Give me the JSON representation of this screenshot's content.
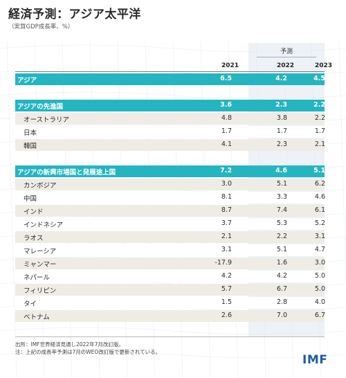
{
  "title": "経済予測：アジア太平洋",
  "subtitle": "（実質GDP成長率、%）",
  "forecast_label": "予測",
  "years": [
    "2021",
    "2022",
    "2023"
  ],
  "rows": [
    {
      "name": "アジア",
      "values": [
        "6.5",
        "4.2",
        "4.5"
      ],
      "kind": "group"
    },
    {
      "name": "アジアの先進国",
      "values": [
        "3.6",
        "2.3",
        "2.2"
      ],
      "kind": "group"
    },
    {
      "name": "オーストラリア",
      "values": [
        "4.8",
        "3.8",
        "2.2"
      ],
      "kind": "country"
    },
    {
      "name": "日本",
      "values": [
        "1.7",
        "1.7",
        "1.7"
      ],
      "kind": "country"
    },
    {
      "name": "韓国",
      "values": [
        "4.1",
        "2.3",
        "2.1"
      ],
      "kind": "country"
    },
    {
      "name": "アジアの新興市場国と発展途上国",
      "values": [
        "7.2",
        "4.6",
        "5.1"
      ],
      "kind": "group"
    },
    {
      "name": "カンボジア",
      "values": [
        "3.0",
        "5.1",
        "6.2"
      ],
      "kind": "country"
    },
    {
      "name": "中国",
      "values": [
        "8.1",
        "3.3",
        "4.6"
      ],
      "kind": "country"
    },
    {
      "name": "インド",
      "values": [
        "8.7",
        "7.4",
        "6.1"
      ],
      "kind": "country"
    },
    {
      "name": "インドネシア",
      "values": [
        "3.7",
        "5.3",
        "5.2"
      ],
      "kind": "country"
    },
    {
      "name": "ラオス",
      "values": [
        "2.1",
        "2.2",
        "3.1"
      ],
      "kind": "country"
    },
    {
      "name": "マレーシア",
      "values": [
        "3.1",
        "5.1",
        "4.7"
      ],
      "kind": "country"
    },
    {
      "name": "ミャンマー",
      "values": [
        "-17.9",
        "1.6",
        "3.0"
      ],
      "kind": "country"
    },
    {
      "name": "ネパール",
      "values": [
        "4.2",
        "4.2",
        "5.0"
      ],
      "kind": "country"
    },
    {
      "name": "フィリピン",
      "values": [
        "5.7",
        "6.7",
        "5.0"
      ],
      "kind": "country"
    },
    {
      "name": "タイ",
      "values": [
        "1.5",
        "2.8",
        "4.0"
      ],
      "kind": "country"
    },
    {
      "name": "ベトナム",
      "values": [
        "2.6",
        "7.0",
        "6.7"
      ],
      "kind": "country"
    }
  ],
  "footnotes": [
    "出所：IMF世界経済見通し2022年7月改訂版。",
    "注：上記の成長率予測は7月のWEO改訂版で更新されている。"
  ],
  "logo_text": "IMF",
  "colors": {
    "group_row": "#24b5c1",
    "odd_row": "#efece6",
    "forecast_band": "#e0e6ee",
    "logo": "#1e5da3"
  },
  "chart_data": {
    "type": "table",
    "title": "経済予測：アジア太平洋",
    "subtitle": "（実質GDP成長率、%）",
    "columns": [
      "2021",
      "2022",
      "2023"
    ],
    "forecast_columns": [
      "2022",
      "2023"
    ],
    "row_labels": [
      "アジア",
      "アジアの先進国",
      "オーストラリア",
      "日本",
      "韓国",
      "アジアの新興市場国と発展途上国",
      "カンボジア",
      "中国",
      "インド",
      "インドネシア",
      "ラオス",
      "マレーシア",
      "ミャンマー",
      "ネパール",
      "フィリピン",
      "タイ",
      "ベトナム"
    ],
    "values": [
      [
        6.5,
        4.2,
        4.5
      ],
      [
        3.6,
        2.3,
        2.2
      ],
      [
        4.8,
        3.8,
        2.2
      ],
      [
        1.7,
        1.7,
        1.7
      ],
      [
        4.1,
        2.3,
        2.1
      ],
      [
        7.2,
        4.6,
        5.1
      ],
      [
        3.0,
        5.1,
        6.2
      ],
      [
        8.1,
        3.3,
        4.6
      ],
      [
        8.7,
        7.4,
        6.1
      ],
      [
        3.7,
        5.3,
        5.2
      ],
      [
        2.1,
        2.2,
        3.1
      ],
      [
        3.1,
        5.1,
        4.7
      ],
      [
        -17.9,
        1.6,
        3.0
      ],
      [
        4.2,
        4.2,
        5.0
      ],
      [
        5.7,
        6.7,
        5.0
      ],
      [
        1.5,
        2.8,
        4.0
      ],
      [
        2.6,
        7.0,
        6.7
      ]
    ]
  }
}
